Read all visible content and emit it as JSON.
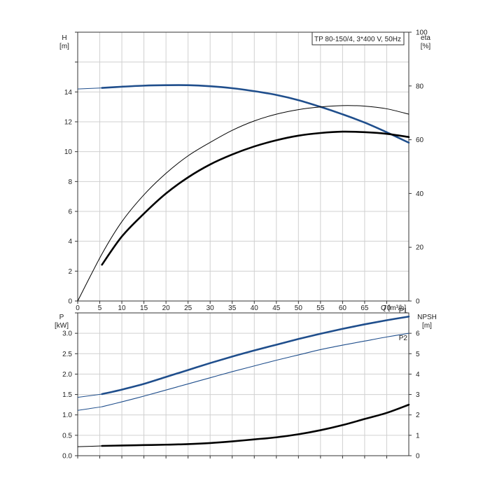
{
  "chart_data": [
    {
      "type": "line",
      "title": "TP 80-150/4, 3*400 V, 50Hz",
      "xlabel": "Q [m³/h]",
      "ylabel_left": [
        "H",
        "[m]"
      ],
      "ylabel_right": [
        "eta",
        "[%]"
      ],
      "x_ticks": [
        "0",
        "5",
        "10",
        "15",
        "20",
        "25",
        "30",
        "35",
        "40",
        "45",
        "50",
        "55",
        "60",
        "65",
        "70"
      ],
      "y_left_ticks": [
        "0",
        "2",
        "4",
        "6",
        "8",
        "10",
        "12",
        "14"
      ],
      "y_right_ticks": [
        "0",
        "20",
        "40",
        "60",
        "80",
        "100"
      ],
      "xlim": [
        0,
        75
      ],
      "ylim_left": [
        0,
        18
      ],
      "ylim_right": [
        0,
        100
      ],
      "grid": true,
      "colors": {
        "head": "#1f4e8c",
        "efficiency": "#000000"
      },
      "series": [
        {
          "curve": "head",
          "axis": "left",
          "style": "thick-blue",
          "x": [
            0,
            5.5,
            10,
            15,
            20,
            25,
            30,
            35,
            40,
            45,
            50,
            55,
            60,
            65,
            70,
            75
          ],
          "y": [
            14.2,
            14.27,
            14.35,
            14.42,
            14.45,
            14.45,
            14.38,
            14.25,
            14.05,
            13.8,
            13.45,
            13.0,
            12.5,
            11.95,
            11.3,
            10.6
          ]
        },
        {
          "curve": "efficiency-thin",
          "axis": "right",
          "style": "thin-black",
          "x": [
            0,
            5.5,
            10,
            15,
            20,
            25,
            30,
            35,
            40,
            45,
            50,
            55,
            60,
            65,
            70,
            75
          ],
          "y": [
            0,
            17.5,
            29.5,
            39.5,
            47.5,
            54,
            59,
            63.5,
            67,
            69.5,
            71.2,
            72.2,
            72.7,
            72.5,
            71.5,
            69.5
          ]
        },
        {
          "curve": "efficiency-thick",
          "axis": "right",
          "style": "thick-black",
          "x": [
            5.5,
            10,
            15,
            20,
            25,
            30,
            35,
            40,
            45,
            50,
            55,
            60,
            65,
            70,
            75
          ],
          "y": [
            13.5,
            24,
            32.5,
            40,
            46,
            50.8,
            54.5,
            57.5,
            59.8,
            61.5,
            62.5,
            63,
            62.8,
            62.2,
            61
          ]
        }
      ]
    },
    {
      "type": "line",
      "ylabel_left": [
        "P",
        "[kW]"
      ],
      "ylabel_right": [
        "NPSH",
        "[m]"
      ],
      "y_left_ticks": [
        "0.0",
        "0.5",
        "1.0",
        "1.5",
        "2.0",
        "2.5",
        "3.0"
      ],
      "y_right_ticks": [
        "0",
        "1",
        "2",
        "3",
        "4",
        "5",
        "6"
      ],
      "ylim_left": [
        0,
        3.5
      ],
      "ylim_right": [
        0,
        7
      ],
      "grid": true,
      "series": [
        {
          "name": "P1",
          "axis": "left",
          "style": "thick-blue",
          "color": "#1f4e8c",
          "x": [
            0,
            5.5,
            10,
            15,
            20,
            25,
            30,
            35,
            40,
            45,
            50,
            55,
            60,
            65,
            70,
            75
          ],
          "y": [
            1.43,
            1.51,
            1.62,
            1.76,
            1.93,
            2.1,
            2.27,
            2.43,
            2.58,
            2.72,
            2.86,
            2.99,
            3.11,
            3.22,
            3.32,
            3.41
          ]
        },
        {
          "name": "P2",
          "axis": "left",
          "style": "thin-blue",
          "color": "#1f4e8c",
          "x": [
            0,
            5.5,
            10,
            15,
            20,
            25,
            30,
            35,
            40,
            45,
            50,
            55,
            60,
            65,
            70,
            75
          ],
          "y": [
            1.11,
            1.2,
            1.32,
            1.46,
            1.61,
            1.76,
            1.91,
            2.06,
            2.2,
            2.34,
            2.47,
            2.6,
            2.71,
            2.81,
            2.91,
            3.0
          ]
        },
        {
          "curve": "npsh",
          "axis": "right",
          "style": "thick-black",
          "color": "#000000",
          "x": [
            0,
            5.5,
            10,
            15,
            20,
            25,
            30,
            35,
            40,
            45,
            50,
            55,
            60,
            65,
            70,
            75
          ],
          "y": [
            0.44,
            0.48,
            0.5,
            0.52,
            0.54,
            0.57,
            0.62,
            0.7,
            0.8,
            0.9,
            1.05,
            1.25,
            1.5,
            1.8,
            2.1,
            2.5
          ]
        }
      ]
    }
  ]
}
